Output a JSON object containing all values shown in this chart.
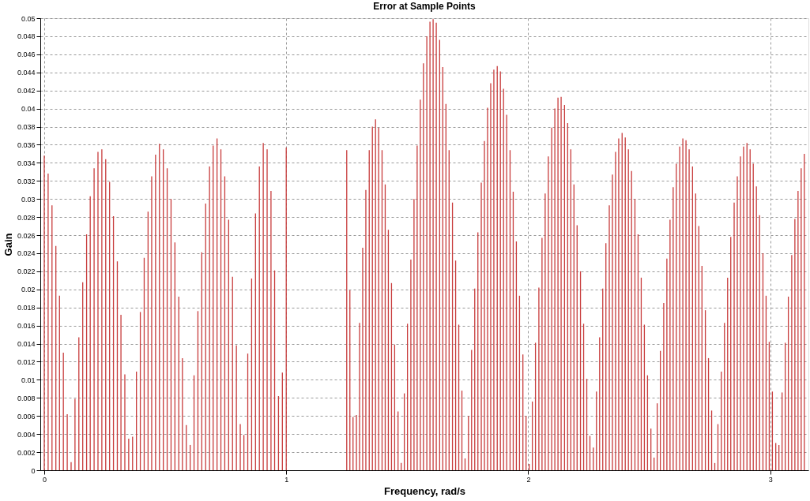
{
  "chart_data": {
    "type": "bar",
    "title": "Error at Sample Points",
    "xlabel": "Frequency, rad/s",
    "ylabel": "Gain",
    "xlim": [
      0,
      3.1416
    ],
    "xticks": [
      0,
      1,
      2,
      3
    ],
    "ylim": [
      0,
      0.05
    ],
    "yticks": [
      0,
      0.002,
      0.004,
      0.006,
      0.008,
      0.01,
      0.012,
      0.014,
      0.016,
      0.018,
      0.02,
      0.022,
      0.024,
      0.026,
      0.028,
      0.03,
      0.032,
      0.034,
      0.036,
      0.038,
      0.04,
      0.042,
      0.044,
      0.046,
      0.048,
      0.05
    ],
    "grid": true,
    "series": [
      {
        "color": "#c83c3c",
        "x": [
          0,
          0.016,
          0.032,
          0.048,
          0.063,
          0.079,
          0.095,
          0.111,
          0.127,
          0.143,
          0.159,
          0.175,
          0.19,
          0.206,
          0.222,
          0.238,
          0.254,
          0.27,
          0.286,
          0.302,
          0.317,
          0.333,
          0.349,
          0.365,
          0.381,
          0.397,
          0.413,
          0.429,
          0.444,
          0.46,
          0.476,
          0.492,
          0.508,
          0.524,
          0.54,
          0.556,
          0.571,
          0.587,
          0.603,
          0.619,
          0.635,
          0.651,
          0.667,
          0.683,
          0.698,
          0.714,
          0.73,
          0.746,
          0.762,
          0.778,
          0.794,
          0.81,
          0.825,
          0.841,
          0.857,
          0.873,
          0.889,
          0.905,
          0.921,
          0.937,
          0.952,
          0.968,
          0.984,
          1,
          1.25,
          1.263,
          1.276,
          1.29,
          1.303,
          1.316,
          1.329,
          1.343,
          1.356,
          1.369,
          1.382,
          1.396,
          1.409,
          1.422,
          1.435,
          1.448,
          1.462,
          1.475,
          1.488,
          1.501,
          1.515,
          1.528,
          1.541,
          1.554,
          1.567,
          1.581,
          1.594,
          1.607,
          1.62,
          1.634,
          1.647,
          1.66,
          1.673,
          1.687,
          1.7,
          1.713,
          1.726,
          1.739,
          1.753,
          1.766,
          1.779,
          1.792,
          1.806,
          1.819,
          1.832,
          1.845,
          1.858,
          1.872,
          1.885,
          1.898,
          1.911,
          1.925,
          1.938,
          1.951,
          1.964,
          1.978,
          1.991,
          2.004,
          2.017,
          2.03,
          2.044,
          2.057,
          2.07,
          2.083,
          2.097,
          2.11,
          2.123,
          2.136,
          2.15,
          2.163,
          2.176,
          2.189,
          2.202,
          2.216,
          2.229,
          2.242,
          2.255,
          2.269,
          2.282,
          2.295,
          2.308,
          2.321,
          2.335,
          2.348,
          2.361,
          2.374,
          2.388,
          2.401,
          2.414,
          2.427,
          2.441,
          2.454,
          2.467,
          2.48,
          2.493,
          2.507,
          2.52,
          2.533,
          2.546,
          2.56,
          2.573,
          2.586,
          2.599,
          2.612,
          2.626,
          2.639,
          2.652,
          2.665,
          2.679,
          2.692,
          2.705,
          2.718,
          2.732,
          2.745,
          2.758,
          2.771,
          2.784,
          2.798,
          2.811,
          2.824,
          2.837,
          2.851,
          2.864,
          2.877,
          2.89,
          2.904,
          2.917,
          2.93,
          2.943,
          2.956,
          2.97,
          2.983,
          2.996,
          3.009,
          3.023,
          3.036,
          3.049,
          3.062,
          3.075,
          3.089,
          3.102,
          3.115,
          3.128,
          3.141
        ],
        "values": [
          0.0348,
          0.0328,
          0.0293,
          0.0248,
          0.0193,
          0.013,
          0.0062,
          0.0009,
          0.0079,
          0.0147,
          0.0208,
          0.0261,
          0.0303,
          0.0334,
          0.0352,
          0.0355,
          0.0344,
          0.0319,
          0.0281,
          0.0231,
          0.0172,
          0.0106,
          0.0035,
          0.0037,
          0.0109,
          0.0175,
          0.0235,
          0.0286,
          0.0325,
          0.0349,
          0.0361,
          0.0355,
          0.0334,
          0.03,
          0.0252,
          0.0192,
          0.0124,
          0.005,
          0.0028,
          0.0105,
          0.0176,
          0.0241,
          0.0295,
          0.0336,
          0.0359,
          0.0367,
          0.0355,
          0.0325,
          0.0277,
          0.0214,
          0.0138,
          0.0051,
          0.0039,
          0.0129,
          0.0212,
          0.0284,
          0.0336,
          0.0362,
          0.0355,
          0.0309,
          0.0221,
          0.0082,
          0.0108,
          0.0357,
          0.0354,
          0.0199,
          0.0059,
          0.0061,
          0.0163,
          0.0246,
          0.031,
          0.0354,
          0.038,
          0.0388,
          0.0379,
          0.0354,
          0.0316,
          0.0266,
          0.0207,
          0.0139,
          0.0065,
          0.0008,
          0.0085,
          0.0162,
          0.0233,
          0.03,
          0.0359,
          0.041,
          0.045,
          0.048,
          0.0496,
          0.0499,
          0.0495,
          0.0476,
          0.0446,
          0.0405,
          0.0354,
          0.0296,
          0.0232,
          0.0161,
          0.0088,
          0.0013,
          0.006,
          0.0133,
          0.0201,
          0.0263,
          0.0318,
          0.0364,
          0.0401,
          0.0428,
          0.0443,
          0.0447,
          0.0441,
          0.0422,
          0.0393,
          0.0354,
          0.0308,
          0.0253,
          0.0193,
          0.0128,
          0.006,
          0.0007,
          0.0076,
          0.0141,
          0.0202,
          0.0257,
          0.0306,
          0.0347,
          0.0379,
          0.04,
          0.0412,
          0.0413,
          0.0404,
          0.0384,
          0.0355,
          0.0316,
          0.0271,
          0.022,
          0.0162,
          0.0101,
          0.0038,
          0.0025,
          0.0087,
          0.0147,
          0.0201,
          0.0251,
          0.0293,
          0.0327,
          0.0352,
          0.0367,
          0.0373,
          0.0368,
          0.0355,
          0.0331,
          0.03,
          0.0261,
          0.0213,
          0.0161,
          0.0105,
          0.0046,
          0.0014,
          0.0074,
          0.0132,
          0.0185,
          0.0234,
          0.0277,
          0.0313,
          0.0339,
          0.0358,
          0.0367,
          0.0365,
          0.0355,
          0.0336,
          0.0306,
          0.027,
          0.0226,
          0.0177,
          0.0124,
          0.0066,
          0.0008,
          0.0051,
          0.0109,
          0.0163,
          0.0213,
          0.0258,
          0.0296,
          0.0325,
          0.0347,
          0.0358,
          0.0362,
          0.0355,
          0.0339,
          0.0314,
          0.0282,
          0.024,
          0.0193,
          0.0142,
          0.0087,
          0.003,
          0.0028,
          0.0086,
          0.0141,
          0.0192,
          0.0238,
          0.0278,
          0.0309,
          0.0334,
          0.035
        ]
      }
    ]
  }
}
